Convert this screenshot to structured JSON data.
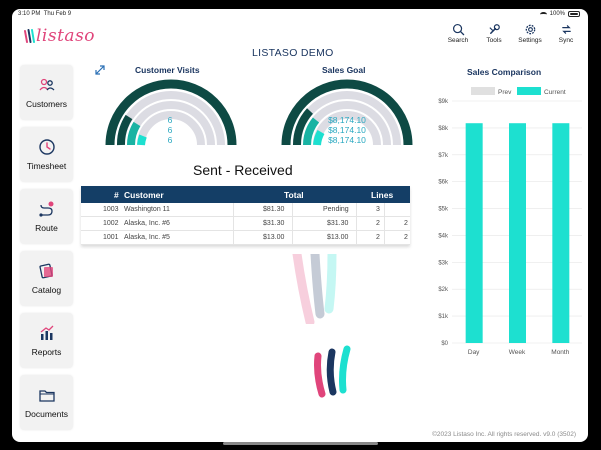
{
  "status_bar": {
    "time": "3:10 PM",
    "date": "Thu Feb 9",
    "battery": "100%"
  },
  "app": {
    "logo_text": "listaso",
    "page_title": "LISTASO DEMO"
  },
  "top_actions": [
    {
      "label": "Search",
      "icon": "search-icon"
    },
    {
      "label": "Tools",
      "icon": "wrench-icon"
    },
    {
      "label": "Settings",
      "icon": "gear-icon"
    },
    {
      "label": "Sync",
      "icon": "sync-icon"
    }
  ],
  "sidebar": {
    "items": [
      {
        "label": "Customers",
        "icon": "customers-icon"
      },
      {
        "label": "Timesheet",
        "icon": "clock-icon"
      },
      {
        "label": "Route",
        "icon": "route-icon"
      },
      {
        "label": "Catalog",
        "icon": "catalog-icon"
      },
      {
        "label": "Reports",
        "icon": "reports-icon"
      },
      {
        "label": "Documents",
        "icon": "folder-icon"
      }
    ]
  },
  "gauges": {
    "visits": {
      "title": "Customer Visits",
      "values": [
        "6",
        "6",
        "6"
      ]
    },
    "sales_goal": {
      "title": "Sales Goal",
      "values": [
        "$8,174.10",
        "$8,174.10",
        "$8,174.10"
      ]
    }
  },
  "sent_received": {
    "title": "Sent - Received",
    "columns": [
      "#",
      "Customer",
      "Total",
      "Lines"
    ],
    "rows": [
      {
        "num": "1003",
        "customer": "Washington 11",
        "total": "$81.30",
        "received": "Pending",
        "lines": "3",
        "extra": ""
      },
      {
        "num": "1002",
        "customer": "Alaska, Inc. #6",
        "total": "$31.30",
        "received": "$31.30",
        "lines": "2",
        "extra": "2"
      },
      {
        "num": "1001",
        "customer": "Alaska, Inc. #5",
        "total": "$13.00",
        "received": "$13.00",
        "lines": "2",
        "extra": "2"
      }
    ]
  },
  "chart_data": {
    "type": "bar",
    "title": "Sales Comparison",
    "categories": [
      "Day",
      "Week",
      "Month"
    ],
    "series": [
      {
        "name": "Prev",
        "values": [
          0,
          0,
          0
        ],
        "color": "#e0e0e0"
      },
      {
        "name": "Current",
        "values": [
          8174.1,
          8174.1,
          8174.1
        ],
        "color": "#1de0d0"
      }
    ],
    "ylim": [
      0,
      9000
    ],
    "yticks": [
      "$0",
      "$1k",
      "$2k",
      "$3k",
      "$4k",
      "$5k",
      "$6k",
      "$7k",
      "$8k",
      "$9k"
    ],
    "legend": "top",
    "grid": true
  },
  "footer": {
    "text": "©2023 Listaso Inc. All rights reserved.  v9.0 (3502)"
  },
  "colors": {
    "brand_pink": "#e0457b",
    "navy": "#143e66",
    "teal": "#1de0d0",
    "dark_green": "#0e4a44"
  }
}
